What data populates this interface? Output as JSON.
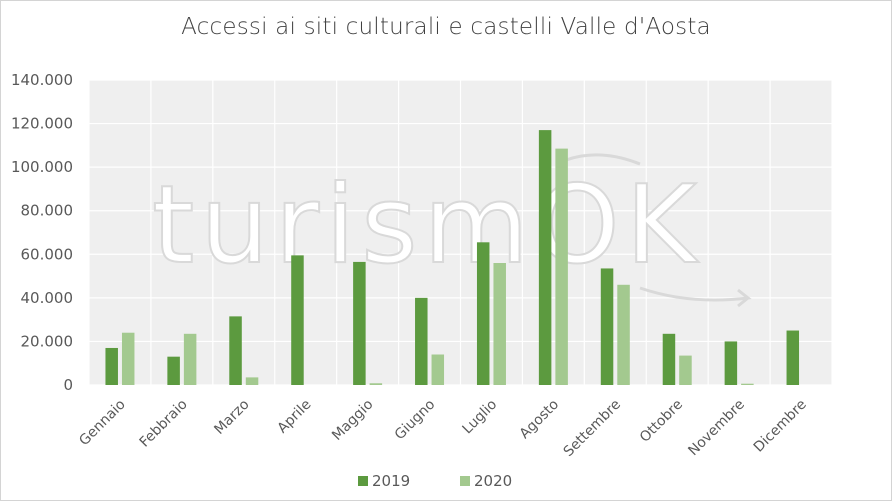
{
  "chart_data": {
    "type": "bar",
    "title": "Accessi ai siti culturali e castelli Valle d'Aosta",
    "categories": [
      "Gennaio",
      "Febbraio",
      "Marzo",
      "Aprile",
      "Maggio",
      "Giugno",
      "Luglio",
      "Agosto",
      "Settembre",
      "Ottobre",
      "Novembre",
      "Dicembre"
    ],
    "series": [
      {
        "name": "2019",
        "color": "#5c9a3f",
        "values": [
          17000,
          13000,
          31500,
          59500,
          56500,
          40000,
          65500,
          117000,
          53500,
          23500,
          20000,
          25000
        ]
      },
      {
        "name": "2020",
        "color": "#a3c98f",
        "values": [
          24000,
          23500,
          3500,
          0,
          800,
          14000,
          56000,
          108500,
          46000,
          13500,
          600,
          0
        ]
      }
    ],
    "ylim": [
      0,
      140000
    ],
    "yticks": [
      0,
      20000,
      40000,
      60000,
      80000,
      100000,
      120000,
      140000
    ],
    "ytick_labels": [
      "0",
      "20.000",
      "40.000",
      "60.000",
      "80.000",
      "100.000",
      "120.000",
      "140.000"
    ],
    "xlabel": "",
    "ylabel": "",
    "grid": true,
    "plot_background": "#efefef",
    "legend_position": "bottom",
    "watermark": "turismOK"
  }
}
